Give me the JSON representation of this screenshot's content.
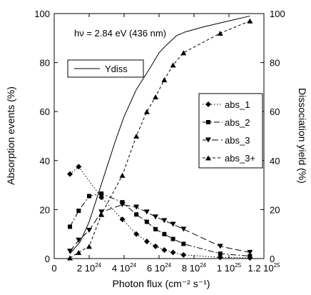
{
  "chart_data": {
    "type": "line",
    "annotation": "hν = 2.84 eV (436 nm)",
    "xlabel": "Photon flux (cm⁻² s⁻¹)",
    "ylabel_left": "Absorption events (%)",
    "ylabel_right": "Dissociation yield (%)",
    "xlim": [
      0,
      1.2e+25
    ],
    "ylim": [
      0,
      100
    ],
    "y2lim": [
      0,
      100
    ],
    "grid": false,
    "x_ticks": [
      {
        "value": 0,
        "mantissa": "0",
        "exp": ""
      },
      {
        "value": 2e+24,
        "mantissa": "2 10",
        "exp": "24"
      },
      {
        "value": 4e+24,
        "mantissa": "4 10",
        "exp": "24"
      },
      {
        "value": 6e+24,
        "mantissa": "6 10",
        "exp": "24"
      },
      {
        "value": 8e+24,
        "mantissa": "8 10",
        "exp": "24"
      },
      {
        "value": 1e+25,
        "mantissa": "1 10",
        "exp": "25"
      },
      {
        "value": 1.2e+25,
        "mantissa": "1.2 10",
        "exp": "25"
      }
    ],
    "y_ticks": [
      0,
      20,
      40,
      60,
      80,
      100
    ],
    "series": [
      {
        "name": "Ydiss",
        "axis": "right",
        "line": "solid",
        "marker": "none",
        "x": [
          9e+23,
          1.5e+24,
          2e+24,
          2.5e+24,
          3e+24,
          3.5e+24,
          4e+24,
          4.7e+24,
          5.5e+24,
          6e+24,
          6.4e+24,
          7e+24,
          7.5e+24,
          8.5e+24,
          1e+25,
          1.12e+25
        ],
        "y": [
          2,
          7,
          15,
          26,
          37,
          48,
          58,
          69,
          78,
          84,
          87,
          91,
          92.5,
          94.5,
          97,
          99
        ]
      },
      {
        "name": "abs_1",
        "axis": "left",
        "line": "dotted",
        "marker": "diamond",
        "x": [
          9e+23,
          1.4e+24,
          2.7e+24,
          3.9e+24,
          4.7e+24,
          5.3e+24,
          5.8e+24,
          6.3e+24,
          6.8e+24,
          7.4e+24,
          9.5e+24,
          1.12e+25
        ],
        "y": [
          34.5,
          37.5,
          25,
          16,
          10,
          7,
          5,
          3.5,
          2.5,
          1.5,
          0.5,
          0.3
        ]
      },
      {
        "name": "abs_2",
        "axis": "left",
        "line": "dashdot",
        "marker": "square",
        "x": [
          9e+23,
          1.4e+24,
          2e+24,
          2.7e+24,
          3.9e+24,
          4.7e+24,
          5.3e+24,
          5.8e+24,
          6.3e+24,
          6.8e+24,
          7.4e+24,
          9.5e+24,
          1.12e+25
        ],
        "y": [
          13,
          19.5,
          25.5,
          26.5,
          23,
          18,
          15,
          12,
          10,
          8,
          6,
          2,
          1
        ]
      },
      {
        "name": "abs_3",
        "axis": "left",
        "line": "longdash",
        "marker": "triangle-down",
        "x": [
          9e+23,
          1.4e+24,
          2e+24,
          2.7e+24,
          3.9e+24,
          4.7e+24,
          5.3e+24,
          5.8e+24,
          6.3e+24,
          6.8e+24,
          7.4e+24,
          9.5e+24,
          1.12e+25
        ],
        "y": [
          3,
          7.5,
          11.5,
          19,
          22,
          21,
          19,
          17,
          15.5,
          14,
          12,
          5,
          2.5
        ]
      },
      {
        "name": "abs_3+",
        "axis": "left",
        "line": "shortdash",
        "marker": "triangle-up",
        "x": [
          9e+23,
          1.4e+24,
          2e+24,
          2.7e+24,
          3.9e+24,
          4.7e+24,
          5.3e+24,
          5.8e+24,
          6.3e+24,
          6.8e+24,
          7.4e+24,
          9.5e+24,
          1.12e+25
        ],
        "y": [
          0.3,
          2.5,
          5,
          18,
          34,
          50,
          60,
          66,
          73,
          79,
          84,
          92,
          97
        ]
      }
    ]
  }
}
